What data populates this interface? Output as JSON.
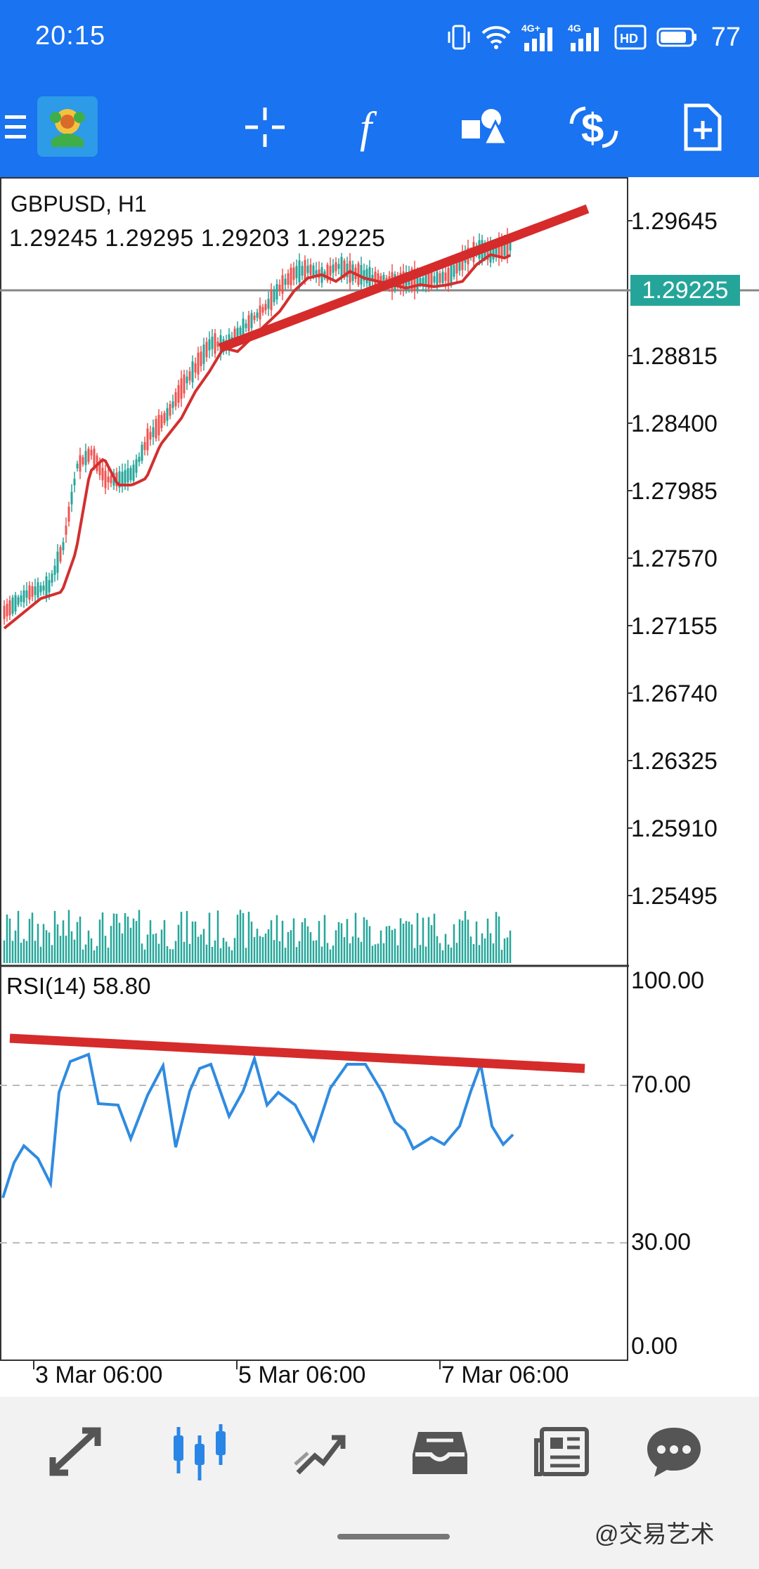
{
  "status_bar": {
    "time": "20:15",
    "battery": "77",
    "icons": [
      "vibrate-icon",
      "wifi-icon",
      "signal-4g-icon",
      "signal-4g-icon",
      "hd-icon",
      "battery-icon"
    ]
  },
  "toolbar": {
    "icons": [
      "menu-icon",
      "app-logo",
      "crosshair-icon",
      "indicators-icon",
      "objects-icon",
      "trade-icon",
      "new-order-icon"
    ]
  },
  "chart": {
    "symbol": "GBPUSD, H1",
    "ohlc": "1.29245 1.29295 1.29203 1.29225",
    "current_price": "1.29225",
    "price_axis": [
      "1.29645",
      "1.28815",
      "1.28400",
      "1.27985",
      "1.27570",
      "1.27155",
      "1.26740",
      "1.26325",
      "1.25910",
      "1.25495"
    ],
    "rsi_title": "RSI(14) 58.80",
    "rsi_axis": [
      "100.00",
      "70.00",
      "30.00",
      "0.00"
    ],
    "time_axis": [
      "3 Mar 06:00",
      "5 Mar 06:00",
      "7 Mar 06:00"
    ],
    "colors": {
      "bull": "#26a69a",
      "bear": "#ef5350",
      "ma": "#d32f2f",
      "trendline": "#d62b2b",
      "rsi": "#2f8be0",
      "price_badge": "#25a59a"
    }
  },
  "bottom_nav": {
    "items": [
      "trade-nav-icon",
      "chart-nav-icon",
      "history-nav-icon",
      "inbox-nav-icon",
      "news-nav-icon",
      "chat-nav-icon"
    ],
    "active": "chart-nav-icon"
  },
  "watermark": "@交易艺术"
}
